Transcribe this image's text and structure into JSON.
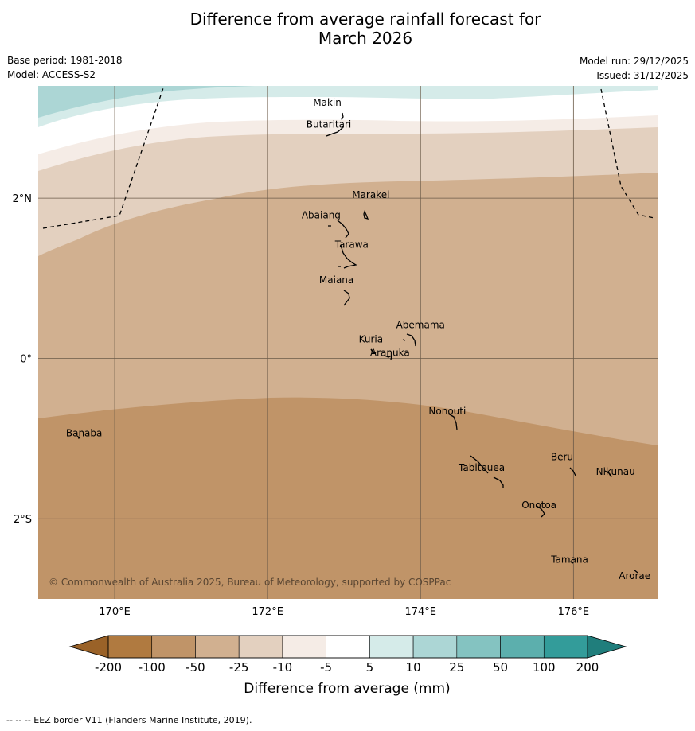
{
  "title_line1": "Difference from average rainfall forecast for",
  "title_line2": "March 2026",
  "base_period": "Base period: 1981-2018",
  "model": "Model: ACCESS-S2",
  "model_run": "Model run: 29/12/2025",
  "issued": "Issued: 31/12/2025",
  "copyright": "© Commonwealth of Australia 2025, Bureau of Meteorology, supported by COSPPac",
  "footer": "--  --  -- EEZ border V11 (Flanders Marine Institute, 2019).",
  "map": {
    "lon_range": [
      169,
      177.1
    ],
    "lat_range": [
      -3.0,
      3.4
    ],
    "lon_ticks": [
      {
        "v": 170,
        "label": "170°E"
      },
      {
        "v": 172,
        "label": "172°E"
      },
      {
        "v": 174,
        "label": "174°E"
      },
      {
        "v": 176,
        "label": "176°E"
      }
    ],
    "lat_ticks": [
      {
        "v": 2,
        "label": "2°N"
      },
      {
        "v": 0,
        "label": "0°"
      },
      {
        "v": -2,
        "label": "2°S"
      }
    ],
    "places": [
      {
        "name": "Makin",
        "lon": 172.78,
        "lat": 3.15
      },
      {
        "name": "Butaritari",
        "lon": 172.8,
        "lat": 2.88
      },
      {
        "name": "Marakei",
        "lon": 173.35,
        "lat": 2.0
      },
      {
        "name": "Abaiang",
        "lon": 172.7,
        "lat": 1.75
      },
      {
        "name": "Tarawa",
        "lon": 173.1,
        "lat": 1.38
      },
      {
        "name": "Maiana",
        "lon": 172.9,
        "lat": 0.94
      },
      {
        "name": "Abemama",
        "lon": 174.0,
        "lat": 0.38
      },
      {
        "name": "Kuria",
        "lon": 173.35,
        "lat": 0.2
      },
      {
        "name": "Aranuka",
        "lon": 173.6,
        "lat": 0.03
      },
      {
        "name": "Banaba",
        "lon": 169.6,
        "lat": -0.97
      },
      {
        "name": "Nonouti",
        "lon": 174.35,
        "lat": -0.7
      },
      {
        "name": "Beru",
        "lon": 175.85,
        "lat": -1.27
      },
      {
        "name": "Tabiteuea",
        "lon": 174.8,
        "lat": -1.4
      },
      {
        "name": "Nikunau",
        "lon": 176.55,
        "lat": -1.45
      },
      {
        "name": "Onotoa",
        "lon": 175.55,
        "lat": -1.87
      },
      {
        "name": "Tamana",
        "lon": 175.95,
        "lat": -2.55
      },
      {
        "name": "Arorae",
        "lon": 176.8,
        "lat": -2.75
      }
    ]
  },
  "colorbar": {
    "label": "Difference from average (mm)",
    "levels": [
      "-200",
      "-100",
      "-50",
      "-25",
      "-10",
      "-5",
      "5",
      "10",
      "25",
      "50",
      "100",
      "200"
    ],
    "colors": [
      "#b07a40",
      "#c09468",
      "#d1b090",
      "#e3d0bf",
      "#f5ece6",
      "#ffffff",
      "#d5ebe9",
      "#acd6d5",
      "#84c3c1",
      "#5cafad",
      "#339c9a"
    ],
    "under_color": "#9a6228",
    "over_color": "#207e7c"
  }
}
